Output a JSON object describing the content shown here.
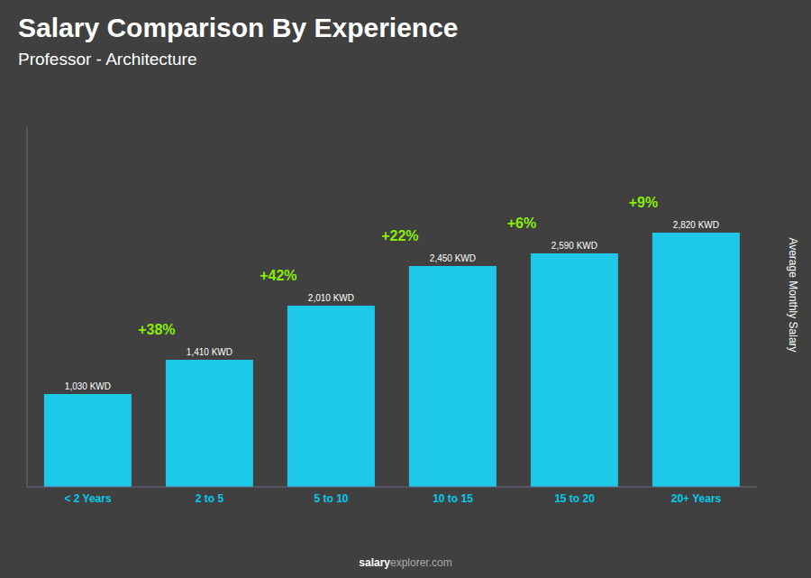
{
  "chart_data": {
    "type": "bar",
    "title": "Salary Comparison By Experience",
    "subtitle": "Professor - Architecture",
    "categories": [
      "< 2 Years",
      "2 to 5",
      "5 to 10",
      "10 to 15",
      "15 to 20",
      "20+ Years"
    ],
    "values": [
      1030,
      1410,
      2010,
      2450,
      2590,
      2820
    ],
    "value_labels": [
      "1,030 KWD",
      "1,410 KWD",
      "2,010 KWD",
      "2,450 KWD",
      "2,590 KWD",
      "2,820 KWD"
    ],
    "data_labels": true,
    "annotations": [
      null,
      "+38%",
      "+42%",
      "+22%",
      "+6%",
      "+9%"
    ],
    "ylabel": "Average Monthly Salary",
    "footer": [
      "salary",
      "explorer.com"
    ],
    "color": "#1ec8e8",
    "ylim": [
      0,
      4000
    ],
    "tick_labels": "x",
    "grid": false
  }
}
